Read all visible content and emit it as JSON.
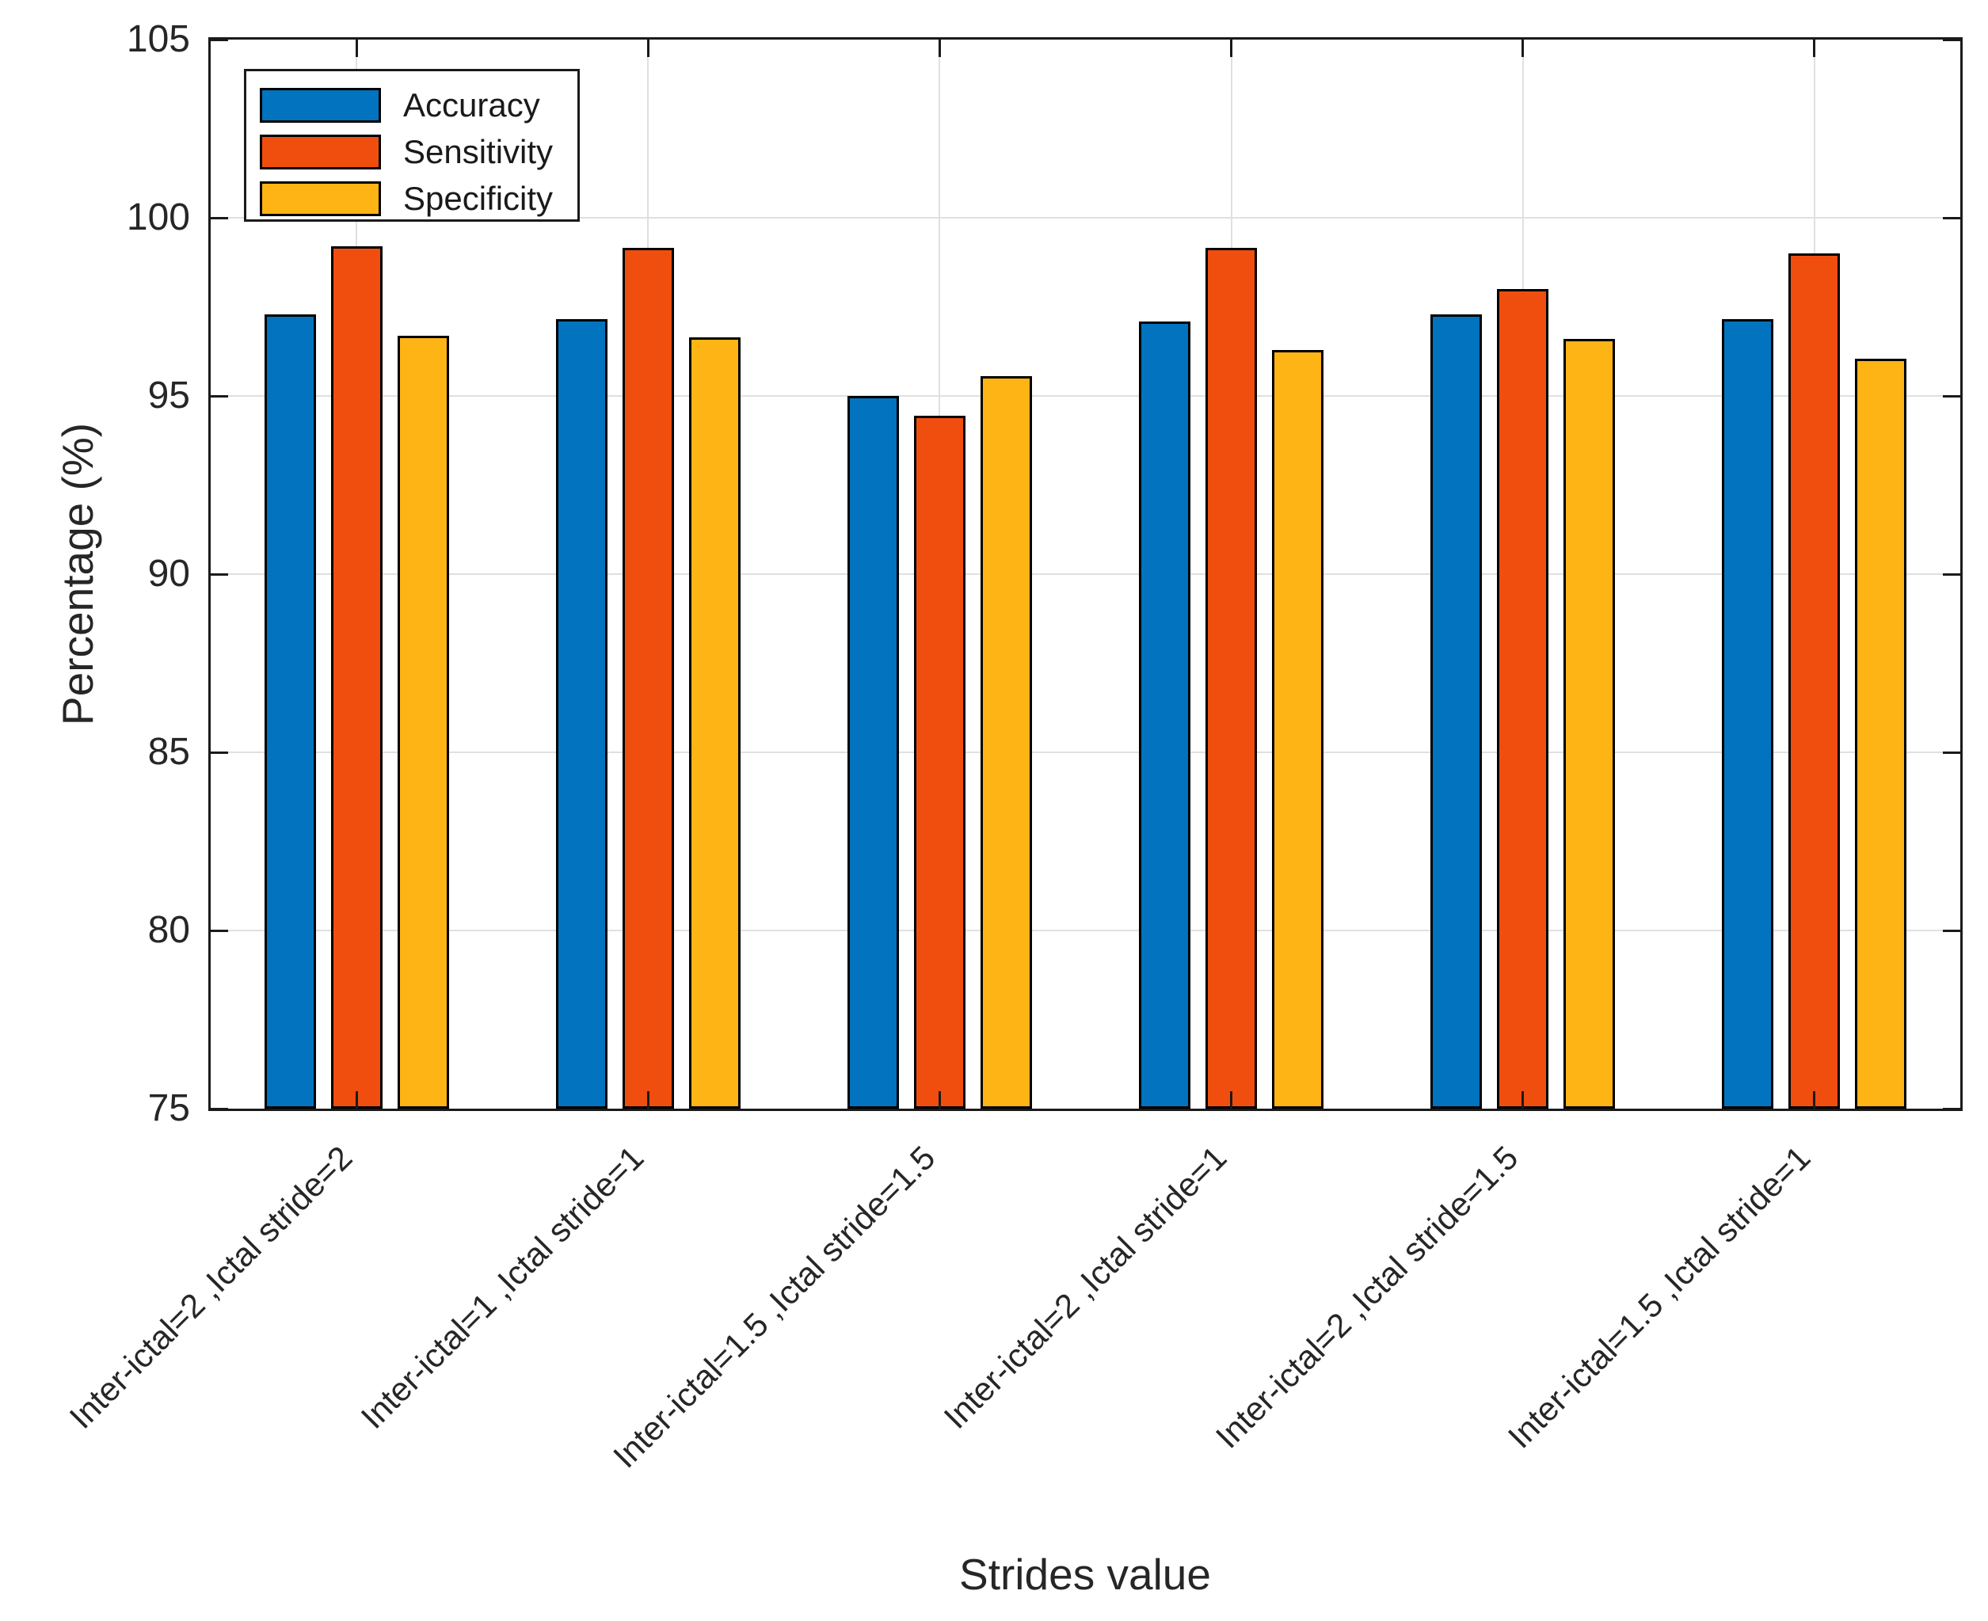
{
  "chart_data": {
    "type": "bar",
    "title": "",
    "xlabel": "Strides value",
    "ylabel": "Percentage (%)",
    "categories": [
      "Inter-ictal=2 ,Ictal stride=2",
      "Inter-ictal=1 ,Ictal stride=1",
      "Inter-ictal=1.5 ,Ictal stride=1.5",
      "Inter-ictal=2 ,Ictal stride=1",
      "Inter-ictal=2 ,Ictal stride=1.5",
      "Inter-ictal=1.5 ,Ictal stride=1"
    ],
    "series": [
      {
        "name": "Accuracy",
        "color": "#0173BF",
        "values": [
          97.3,
          97.15,
          95.0,
          97.1,
          97.3,
          97.15
        ]
      },
      {
        "name": "Sensitivity",
        "color": "#F04E0F",
        "values": [
          99.2,
          99.15,
          94.45,
          99.15,
          98.0,
          99.0
        ]
      },
      {
        "name": "Specificity",
        "color": "#FDB414",
        "values": [
          96.7,
          96.65,
          95.55,
          96.3,
          96.6,
          96.05
        ]
      }
    ],
    "ylim": [
      75,
      105
    ],
    "yticks": [
      75,
      80,
      85,
      90,
      95,
      100,
      105
    ],
    "grid": true,
    "legend_position": "top-left",
    "colors": {
      "axis": "#1A1A1A",
      "grid": "#E0E0E0",
      "text": "#262626",
      "bar_edge": "#000000",
      "background": "#FFFFFF"
    }
  }
}
